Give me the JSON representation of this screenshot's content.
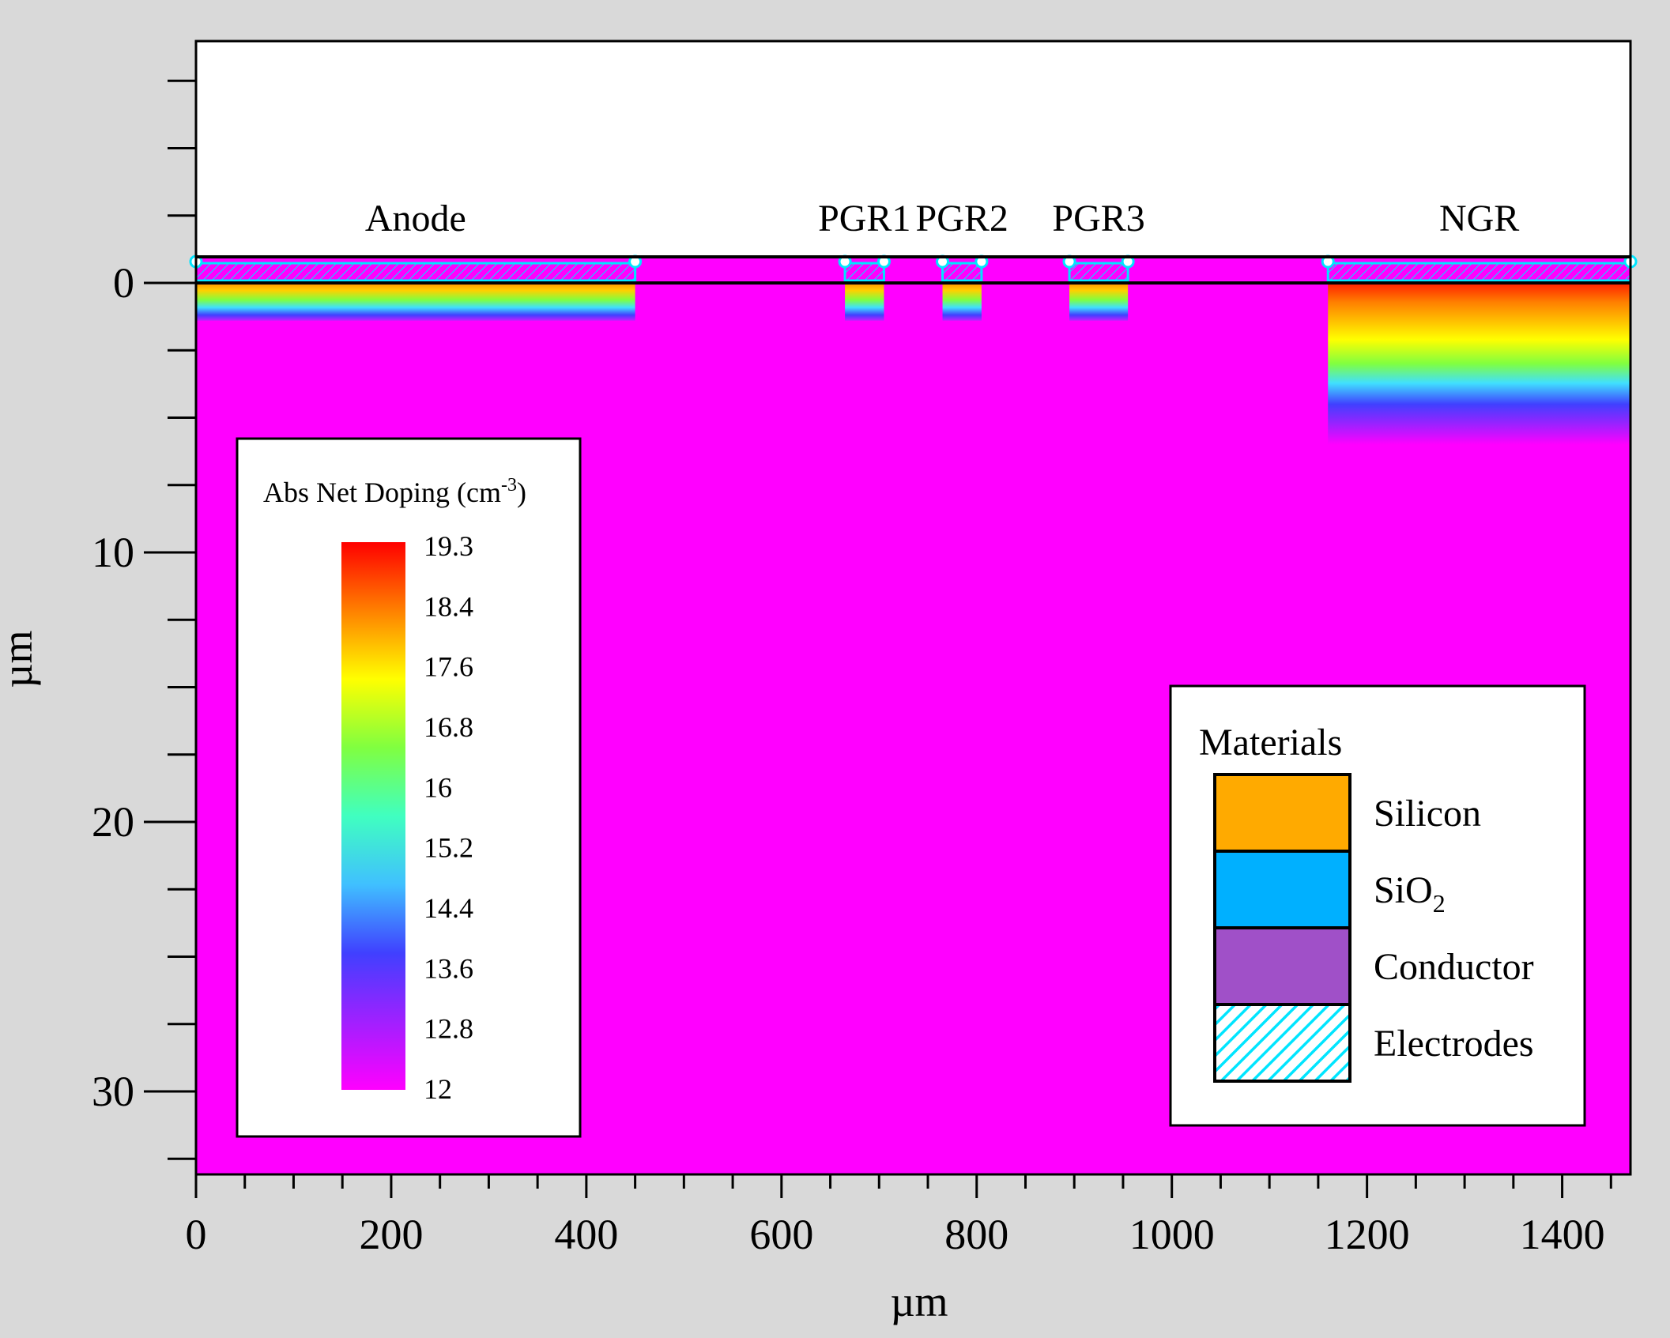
{
  "chart_data": {
    "type": "heatmap",
    "description_colorbar_title": "Abs Net Doping (cm",
    "colorbar": {
      "title_main": "Abs Net Doping (cm",
      "title_sup": "-3",
      "title_end": ")",
      "ticks": [
        "19.3",
        "18.4",
        "17.6",
        "16.8",
        "16",
        "15.2",
        "14.4",
        "13.6",
        "12.8",
        "12"
      ],
      "range": [
        12,
        19.3
      ],
      "colors": [
        "#ff0000",
        "#ff8000",
        "#ffff00",
        "#80ff40",
        "#40ffc0",
        "#40c0ff",
        "#4040ff",
        "#a020ff",
        "#ff00ff"
      ]
    },
    "xaxis": {
      "title": "µm",
      "range": [
        0,
        1470
      ],
      "ticks": [
        0,
        200,
        400,
        600,
        800,
        1000,
        1200,
        1400
      ],
      "tick_labels": [
        "0",
        "200",
        "400",
        "600",
        "800",
        "1000",
        "1200",
        "1400"
      ]
    },
    "yaxis": {
      "title": "µm",
      "range": [
        -9,
        33
      ],
      "ticks": [
        0,
        10,
        20,
        30
      ],
      "tick_labels": [
        "0",
        "10",
        "20",
        "30"
      ],
      "inverted": true
    },
    "regions": [
      {
        "name": "Anode",
        "x": [
          0,
          450
        ],
        "junction_depth": 1.4,
        "peak": 18.4
      },
      {
        "name": "PGR1",
        "x": [
          665,
          705
        ],
        "junction_depth": 1.4,
        "peak": 18.4
      },
      {
        "name": "PGR2",
        "x": [
          765,
          805
        ],
        "junction_depth": 1.4,
        "peak": 18.4
      },
      {
        "name": "PGR3",
        "x": [
          895,
          955
        ],
        "junction_depth": 1.4,
        "peak": 18.4
      },
      {
        "name": "NGR",
        "x": [
          1160,
          1470
        ],
        "junction_depth": 6,
        "peak": 19.3
      }
    ],
    "background_doping": 12,
    "electrode_labels": [
      "Anode",
      "PGR1",
      "PGR2",
      "PGR3",
      "NGR"
    ]
  },
  "materials_legend": {
    "title": "Materials",
    "items": [
      {
        "label": "Silicon",
        "color": "#ffaa00"
      },
      {
        "label": "SiO",
        "sub": "2",
        "color": "#00b0ff"
      },
      {
        "label": "Conductor",
        "color": "#a050c8"
      },
      {
        "label": "Electrodes",
        "color": "#00e5ff",
        "pattern": "hatch"
      }
    ]
  }
}
